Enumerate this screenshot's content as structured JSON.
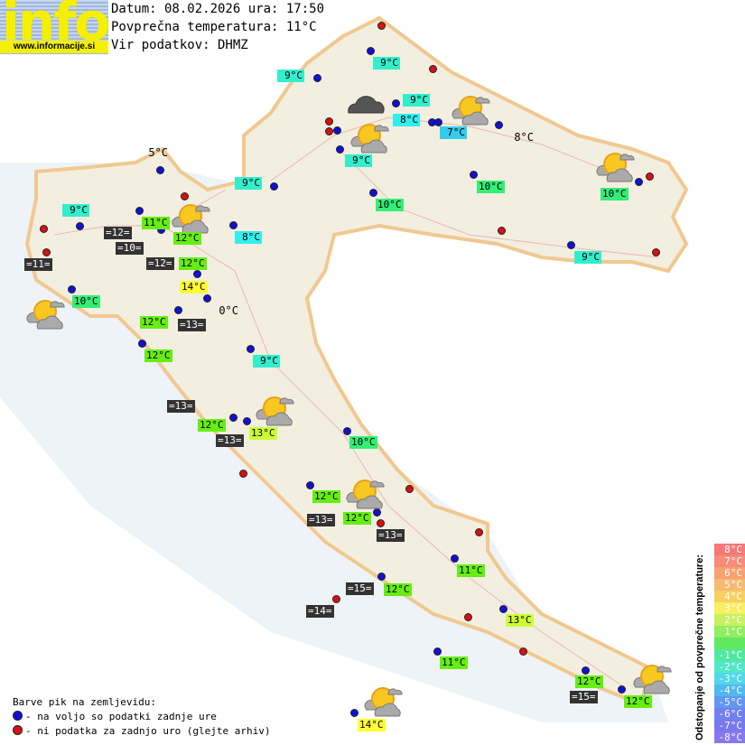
{
  "logo": {
    "word": "info",
    "url": "www.informacije.si"
  },
  "header": {
    "date_line": "Datum: 08.02.2026 ura: 17:50",
    "avg_temp_line": "Povprečna temperatura: 11°C",
    "source_line": "Vir podatkov: DHMZ"
  },
  "stations": [
    "9°C",
    "9°C",
    "9°C",
    "8°C",
    "7°C",
    "9°C",
    "10°C",
    "10°C",
    "9°C",
    "8°C",
    "8°C",
    "10°C",
    "9°C",
    "9°C",
    "11°C",
    "=12=",
    "12°C",
    "=10=",
    "12°C",
    "=12=",
    "=11=",
    "14°C",
    "10°C",
    "0°C",
    "12°C",
    "=13=",
    "12°C",
    "9°C",
    "=13=",
    "12°C",
    "=13=",
    "13°C",
    "10°C",
    "12°C",
    "=13=",
    "12°C",
    "=13=",
    "11°C",
    "=15=",
    "12°C",
    "=14=",
    "13°C",
    "11°C",
    "12°C",
    "=15=",
    "12°C",
    "14°C",
    "5°C"
  ],
  "legend": {
    "title": "Barve pik na zemljevidu:",
    "blue": "- na voljo so podatki zadnje ure",
    "red": "- ni podatka za zadnjo uro (glejte arhiv)",
    "blue_color": "#1010d8",
    "red_color": "#d81010"
  },
  "scale": {
    "title": "Odstopanje od povprečne temperature:",
    "items": [
      "8°C",
      "7°C",
      "6°C",
      "5°C",
      "4°C",
      "3°C",
      "2°C",
      "1°C",
      "",
      "-1°C",
      "-2°C",
      "-3°C",
      "-4°C",
      "-5°C",
      "-6°C",
      "-7°C",
      "-8°C"
    ],
    "colors": [
      "#f77878",
      "#f78a78",
      "#f7a070",
      "#f7b870",
      "#f7d060",
      "#f7ee60",
      "#c8f060",
      "#90ee60",
      "#60e860",
      "#50e8a0",
      "#50e8c8",
      "#50d8e8",
      "#50b8f0",
      "#6098f0",
      "#7080f0",
      "#7878f0",
      "#8878f0"
    ]
  }
}
